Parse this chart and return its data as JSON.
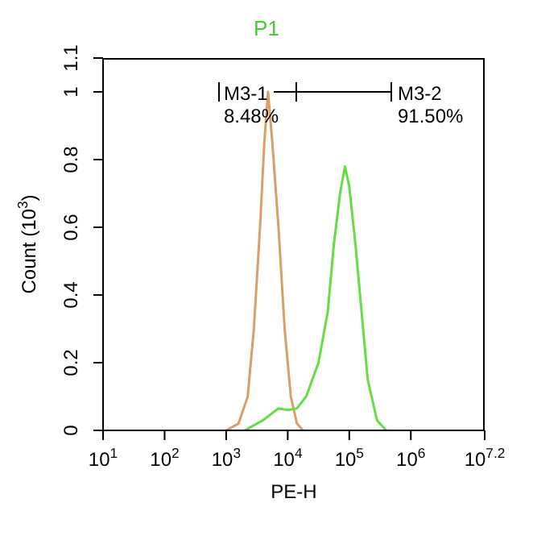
{
  "chart_data": {
    "type": "line",
    "title": "P1",
    "xlabel": "PE-H",
    "ylabel": "Count (10$^{3}$)",
    "log": "x",
    "marker": "none",
    "line_style": "solid",
    "xlim": [
      10,
      15848932
    ],
    "xticks": [
      {
        "value": 10,
        "label": "10$^{1}$"
      },
      {
        "value": 100,
        "label": "10$^{2}$"
      },
      {
        "value": 1000,
        "label": "10$^{3}$"
      },
      {
        "value": 10000,
        "label": "10$^{4}$"
      },
      {
        "value": 100000,
        "label": "10$^{5}$"
      },
      {
        "value": 1000000,
        "label": "10$^{6}$"
      },
      {
        "value": 15848932,
        "label": "10$^{7.2}$"
      }
    ],
    "ylim": [
      0,
      1.1
    ],
    "yticks": [
      0,
      0.2,
      0.4,
      0.6,
      0.8,
      1,
      1.1
    ],
    "series": [
      {
        "color": "#d9a066",
        "x": [
          1000,
          1585,
          2239,
          2818,
          3548,
          4169,
          4786,
          5623,
          7079,
          8913,
          11220,
          14125,
          17783
        ],
        "values": [
          0,
          0.02,
          0.1,
          0.3,
          0.6,
          0.85,
          1.0,
          0.85,
          0.6,
          0.3,
          0.1,
          0.02,
          0
        ]
      },
      {
        "color": "#66dd44",
        "x": [
          1995,
          3981,
          7079,
          10000,
          14125,
          19953,
          31623,
          44668,
          56234,
          70795,
          85114,
          100000,
          125893,
          158489,
          199526,
          281838,
          398107
        ],
        "values": [
          0,
          0.03,
          0.065,
          0.06,
          0.065,
          0.1,
          0.2,
          0.35,
          0.55,
          0.7,
          0.78,
          0.72,
          0.55,
          0.35,
          0.15,
          0.03,
          0
        ]
      }
    ],
    "annotations": [
      "M3-1",
      "8.48%",
      "M3-2",
      "91.50%"
    ]
  }
}
